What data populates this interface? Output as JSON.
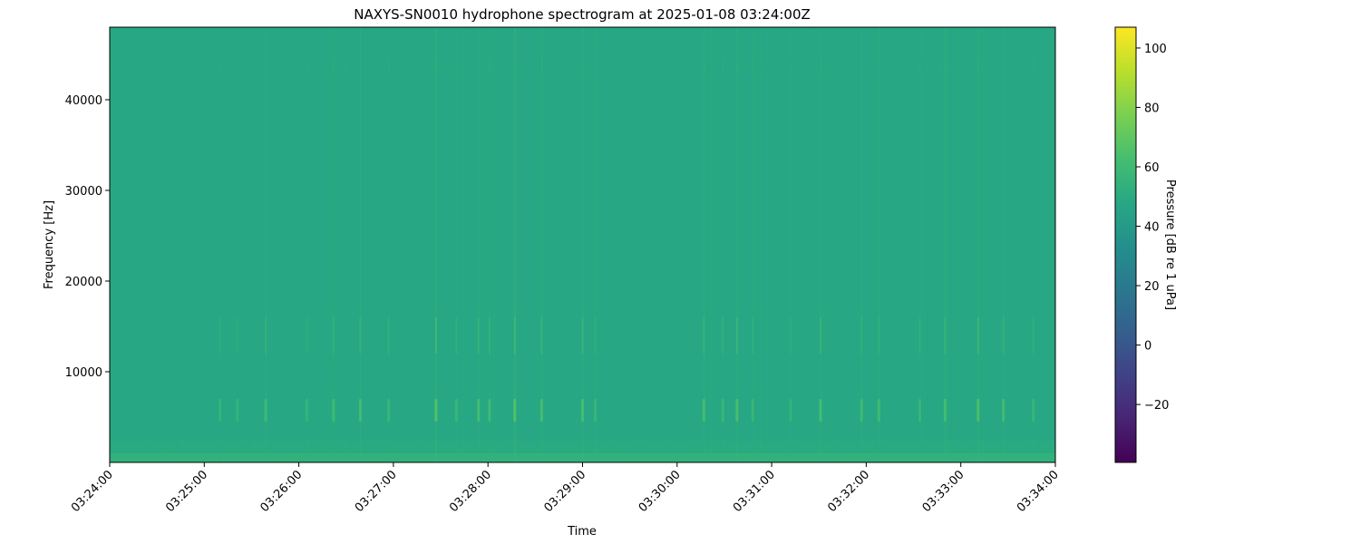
{
  "chart_data": {
    "type": "heatmap",
    "title": "NAXYS-SN0010 hydrophone spectrogram at 2025-01-08 03:24:00Z",
    "xlabel": "Time",
    "ylabel": "Frequency [Hz]",
    "xlim": [
      "03:24:00",
      "03:34:00"
    ],
    "ylim": [
      0,
      48000
    ],
    "x_ticks": [
      "03:24:00",
      "03:25:00",
      "03:26:00",
      "03:27:00",
      "03:28:00",
      "03:29:00",
      "03:30:00",
      "03:31:00",
      "03:32:00",
      "03:33:00",
      "03:34:00"
    ],
    "y_ticks": [
      10000,
      20000,
      30000,
      40000
    ],
    "colormap": "viridis",
    "colorbar": {
      "label": "Pressure [dB re 1 uPa]",
      "range": [
        -39.5,
        107
      ],
      "ticks": [
        -20,
        0,
        20,
        40,
        60,
        80,
        100
      ]
    },
    "background_level_db": 48,
    "low_frequency_band": {
      "range_hz": [
        0,
        1000
      ],
      "level_db": 55
    },
    "transient_events": [
      {
        "time": "03:25:10",
        "peak_db": 58
      },
      {
        "time": "03:25:21",
        "peak_db": 58
      },
      {
        "time": "03:25:39",
        "peak_db": 62
      },
      {
        "time": "03:26:05",
        "peak_db": 58
      },
      {
        "time": "03:26:22",
        "peak_db": 62
      },
      {
        "time": "03:26:39",
        "peak_db": 63
      },
      {
        "time": "03:26:57",
        "peak_db": 60
      },
      {
        "time": "03:27:27",
        "peak_db": 68
      },
      {
        "time": "03:27:40",
        "peak_db": 60
      },
      {
        "time": "03:27:54",
        "peak_db": 64
      },
      {
        "time": "03:28:01",
        "peak_db": 62
      },
      {
        "time": "03:28:17",
        "peak_db": 68
      },
      {
        "time": "03:28:34",
        "peak_db": 64
      },
      {
        "time": "03:29:00",
        "peak_db": 64
      },
      {
        "time": "03:29:08",
        "peak_db": 60
      },
      {
        "time": "03:30:17",
        "peak_db": 64
      },
      {
        "time": "03:30:29",
        "peak_db": 60
      },
      {
        "time": "03:30:38",
        "peak_db": 65
      },
      {
        "time": "03:30:48",
        "peak_db": 60
      },
      {
        "time": "03:31:12",
        "peak_db": 58
      },
      {
        "time": "03:31:31",
        "peak_db": 64
      },
      {
        "time": "03:31:57",
        "peak_db": 62
      },
      {
        "time": "03:32:08",
        "peak_db": 62
      },
      {
        "time": "03:32:34",
        "peak_db": 60
      },
      {
        "time": "03:32:50",
        "peak_db": 64
      },
      {
        "time": "03:33:11",
        "peak_db": 66
      },
      {
        "time": "03:33:27",
        "peak_db": 63
      },
      {
        "time": "03:33:46",
        "peak_db": 60
      }
    ]
  }
}
